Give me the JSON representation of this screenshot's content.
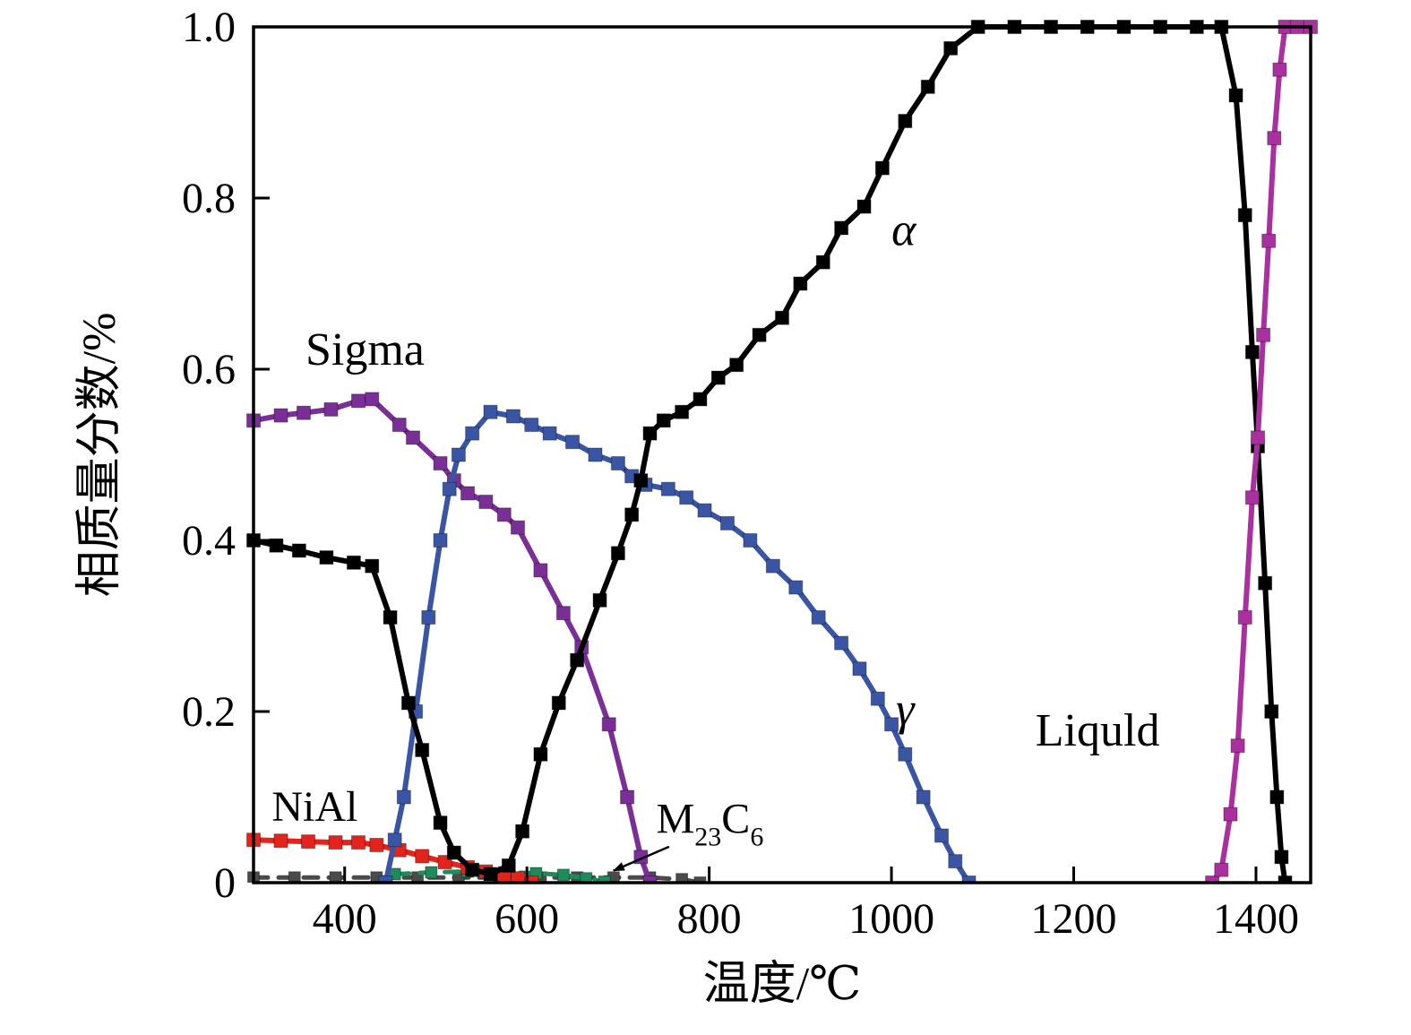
{
  "figure": {
    "background": "#ffffff",
    "axis_color": "#000000"
  },
  "chart_data": {
    "type": "line",
    "title": "",
    "xlabel": "温度/℃",
    "ylabel": "相质量分数/%",
    "xlim": [
      300,
      1460
    ],
    "ylim": [
      0,
      1.0
    ],
    "grid": false,
    "legend_position": "none",
    "x_ticks": [
      {
        "value": 400,
        "label": "400"
      },
      {
        "value": 600,
        "label": "600"
      },
      {
        "value": 800,
        "label": "800"
      },
      {
        "value": 1000,
        "label": "1000"
      },
      {
        "value": 1200,
        "label": "1200"
      },
      {
        "value": 1400,
        "label": "1400"
      }
    ],
    "y_ticks": [
      {
        "value": 0,
        "label": "0"
      },
      {
        "value": 0.2,
        "label": "0.2"
      },
      {
        "value": 0.4,
        "label": "0.4"
      },
      {
        "value": 0.6,
        "label": "0.6"
      },
      {
        "value": 0.8,
        "label": "0.8"
      },
      {
        "value": 1.0,
        "label": "1.0"
      }
    ],
    "series": [
      {
        "id": "m23c6",
        "name": "M23C6",
        "color": "#4a4a4a",
        "dash": "16 12",
        "width": 5,
        "marker": 13,
        "points": [
          [
            300,
            0.006
          ],
          [
            345,
            0.006
          ],
          [
            390,
            0.006
          ],
          [
            435,
            0.006
          ],
          [
            480,
            0.006
          ],
          [
            525,
            0.006
          ],
          [
            570,
            0.006
          ],
          [
            615,
            0.006
          ],
          [
            655,
            0.006
          ],
          [
            695,
            0.006
          ],
          [
            735,
            0.006
          ],
          [
            770,
            0.004
          ],
          [
            790,
            0.0
          ]
        ]
      },
      {
        "id": "green_dashed",
        "name": "",
        "color": "#1f8a5a",
        "dash": "16 12",
        "width": 5,
        "marker": 13,
        "points": [
          [
            455,
            0.01
          ],
          [
            495,
            0.012
          ],
          [
            535,
            0.013
          ],
          [
            575,
            0.012
          ],
          [
            610,
            0.011
          ],
          [
            640,
            0.009
          ],
          [
            665,
            0.005
          ],
          [
            685,
            0.001
          ]
        ]
      },
      {
        "id": "nial",
        "name": "NiAl",
        "color": "#e3241c",
        "dash": null,
        "width": 6,
        "marker": 15,
        "points": [
          [
            300,
            0.05
          ],
          [
            330,
            0.049
          ],
          [
            360,
            0.048
          ],
          [
            390,
            0.047
          ],
          [
            415,
            0.047
          ],
          [
            435,
            0.044
          ],
          [
            460,
            0.038
          ],
          [
            485,
            0.031
          ],
          [
            510,
            0.024
          ],
          [
            535,
            0.018
          ],
          [
            555,
            0.013
          ],
          [
            575,
            0.009
          ],
          [
            590,
            0.005
          ],
          [
            605,
            0.0
          ]
        ]
      },
      {
        "id": "sigma",
        "name": "Sigma",
        "color": "#7a2f96",
        "dash": null,
        "width": 6,
        "marker": 15,
        "points": [
          [
            300,
            0.54
          ],
          [
            330,
            0.546
          ],
          [
            355,
            0.549
          ],
          [
            385,
            0.553
          ],
          [
            415,
            0.563
          ],
          [
            430,
            0.565
          ],
          [
            460,
            0.535
          ],
          [
            475,
            0.52
          ],
          [
            505,
            0.49
          ],
          [
            520,
            0.47
          ],
          [
            535,
            0.455
          ],
          [
            555,
            0.445
          ],
          [
            575,
            0.43
          ],
          [
            590,
            0.415
          ],
          [
            615,
            0.365
          ],
          [
            640,
            0.315
          ],
          [
            660,
            0.275
          ],
          [
            690,
            0.185
          ],
          [
            710,
            0.1
          ],
          [
            725,
            0.03
          ],
          [
            735,
            0.0
          ]
        ]
      },
      {
        "id": "gamma",
        "name": "γ",
        "color": "#3a55a4",
        "dash": null,
        "width": 6,
        "marker": 15,
        "points": [
          [
            445,
            0.0
          ],
          [
            455,
            0.05
          ],
          [
            465,
            0.1
          ],
          [
            478,
            0.2
          ],
          [
            492,
            0.31
          ],
          [
            505,
            0.4
          ],
          [
            515,
            0.46
          ],
          [
            525,
            0.5
          ],
          [
            540,
            0.525
          ],
          [
            560,
            0.55
          ],
          [
            585,
            0.545
          ],
          [
            605,
            0.535
          ],
          [
            625,
            0.525
          ],
          [
            650,
            0.515
          ],
          [
            675,
            0.5
          ],
          [
            700,
            0.49
          ],
          [
            715,
            0.475
          ],
          [
            730,
            0.465
          ],
          [
            755,
            0.46
          ],
          [
            775,
            0.45
          ],
          [
            795,
            0.435
          ],
          [
            820,
            0.42
          ],
          [
            845,
            0.4
          ],
          [
            870,
            0.37
          ],
          [
            895,
            0.345
          ],
          [
            920,
            0.31
          ],
          [
            945,
            0.28
          ],
          [
            965,
            0.25
          ],
          [
            985,
            0.215
          ],
          [
            1000,
            0.185
          ],
          [
            1015,
            0.15
          ],
          [
            1035,
            0.1
          ],
          [
            1055,
            0.055
          ],
          [
            1070,
            0.025
          ],
          [
            1085,
            0.0
          ]
        ]
      },
      {
        "id": "alpha",
        "name": "α",
        "color": "#000000",
        "dash": null,
        "width": 6,
        "marker": 15,
        "points": [
          [
            300,
            0.4
          ],
          [
            325,
            0.394
          ],
          [
            350,
            0.388
          ],
          [
            380,
            0.38
          ],
          [
            410,
            0.374
          ],
          [
            430,
            0.37
          ],
          [
            450,
            0.31
          ],
          [
            470,
            0.21
          ],
          [
            485,
            0.155
          ],
          [
            505,
            0.07
          ],
          [
            520,
            0.035
          ],
          [
            540,
            0.015
          ],
          [
            560,
            0.01
          ],
          [
            580,
            0.02
          ],
          [
            595,
            0.06
          ],
          [
            615,
            0.15
          ],
          [
            635,
            0.21
          ],
          [
            655,
            0.26
          ],
          [
            680,
            0.33
          ],
          [
            700,
            0.385
          ],
          [
            715,
            0.43
          ],
          [
            725,
            0.47
          ],
          [
            735,
            0.525
          ],
          [
            750,
            0.54
          ],
          [
            770,
            0.55
          ],
          [
            790,
            0.565
          ],
          [
            810,
            0.59
          ],
          [
            830,
            0.605
          ],
          [
            855,
            0.64
          ],
          [
            880,
            0.66
          ],
          [
            900,
            0.7
          ],
          [
            925,
            0.725
          ],
          [
            945,
            0.765
          ],
          [
            970,
            0.79
          ],
          [
            990,
            0.835
          ],
          [
            1015,
            0.89
          ],
          [
            1040,
            0.93
          ],
          [
            1065,
            0.975
          ],
          [
            1095,
            1.0
          ],
          [
            1135,
            1.0
          ],
          [
            1175,
            1.0
          ],
          [
            1215,
            1.0
          ],
          [
            1255,
            1.0
          ],
          [
            1295,
            1.0
          ],
          [
            1335,
            1.0
          ],
          [
            1362,
            1.0
          ],
          [
            1378,
            0.92
          ],
          [
            1388,
            0.78
          ],
          [
            1396,
            0.62
          ],
          [
            1402,
            0.51
          ],
          [
            1410,
            0.35
          ],
          [
            1417,
            0.2
          ],
          [
            1423,
            0.1
          ],
          [
            1428,
            0.03
          ],
          [
            1432,
            0.0
          ]
        ]
      },
      {
        "id": "liquid",
        "name": "Liquld",
        "color": "#a9309e",
        "dash": null,
        "width": 6,
        "marker": 15,
        "points": [
          [
            1352,
            0.0
          ],
          [
            1362,
            0.015
          ],
          [
            1372,
            0.08
          ],
          [
            1380,
            0.16
          ],
          [
            1388,
            0.31
          ],
          [
            1396,
            0.45
          ],
          [
            1402,
            0.52
          ],
          [
            1408,
            0.64
          ],
          [
            1414,
            0.75
          ],
          [
            1420,
            0.87
          ],
          [
            1426,
            0.95
          ],
          [
            1432,
            1.0
          ],
          [
            1445,
            1.0
          ],
          [
            1460,
            1.0
          ]
        ]
      }
    ],
    "annotations": [
      {
        "id": "sigma-label",
        "text": "Sigma",
        "x": 357,
        "y": 0.605,
        "italic": false,
        "anchor": "start",
        "size": 52
      },
      {
        "id": "nial-label",
        "text": "NiAl",
        "x": 320,
        "y": 0.072,
        "italic": false,
        "anchor": "start",
        "size": 48
      },
      {
        "id": "m23c6-label",
        "text": "M23C6",
        "parts": [
          {
            "t": "M"
          },
          {
            "t": "23",
            "sub": true
          },
          {
            "t": "C"
          },
          {
            "t": "6",
            "sub": true
          }
        ],
        "x": 742,
        "y": 0.058,
        "italic": false,
        "anchor": "start",
        "size": 48,
        "arrow": {
          "x1": 756,
          "y1": 0.042,
          "x2": 695,
          "y2": 0.014
        }
      },
      {
        "id": "alpha-label",
        "text": "α",
        "x": 1000,
        "y": 0.745,
        "italic": true,
        "anchor": "start",
        "size": 52
      },
      {
        "id": "gamma-label",
        "text": "γ",
        "x": 1005,
        "y": 0.185,
        "italic": true,
        "anchor": "start",
        "size": 52
      },
      {
        "id": "liquid-label",
        "text": "Liquld",
        "x": 1158,
        "y": 0.16,
        "italic": false,
        "anchor": "start",
        "size": 52
      }
    ]
  }
}
